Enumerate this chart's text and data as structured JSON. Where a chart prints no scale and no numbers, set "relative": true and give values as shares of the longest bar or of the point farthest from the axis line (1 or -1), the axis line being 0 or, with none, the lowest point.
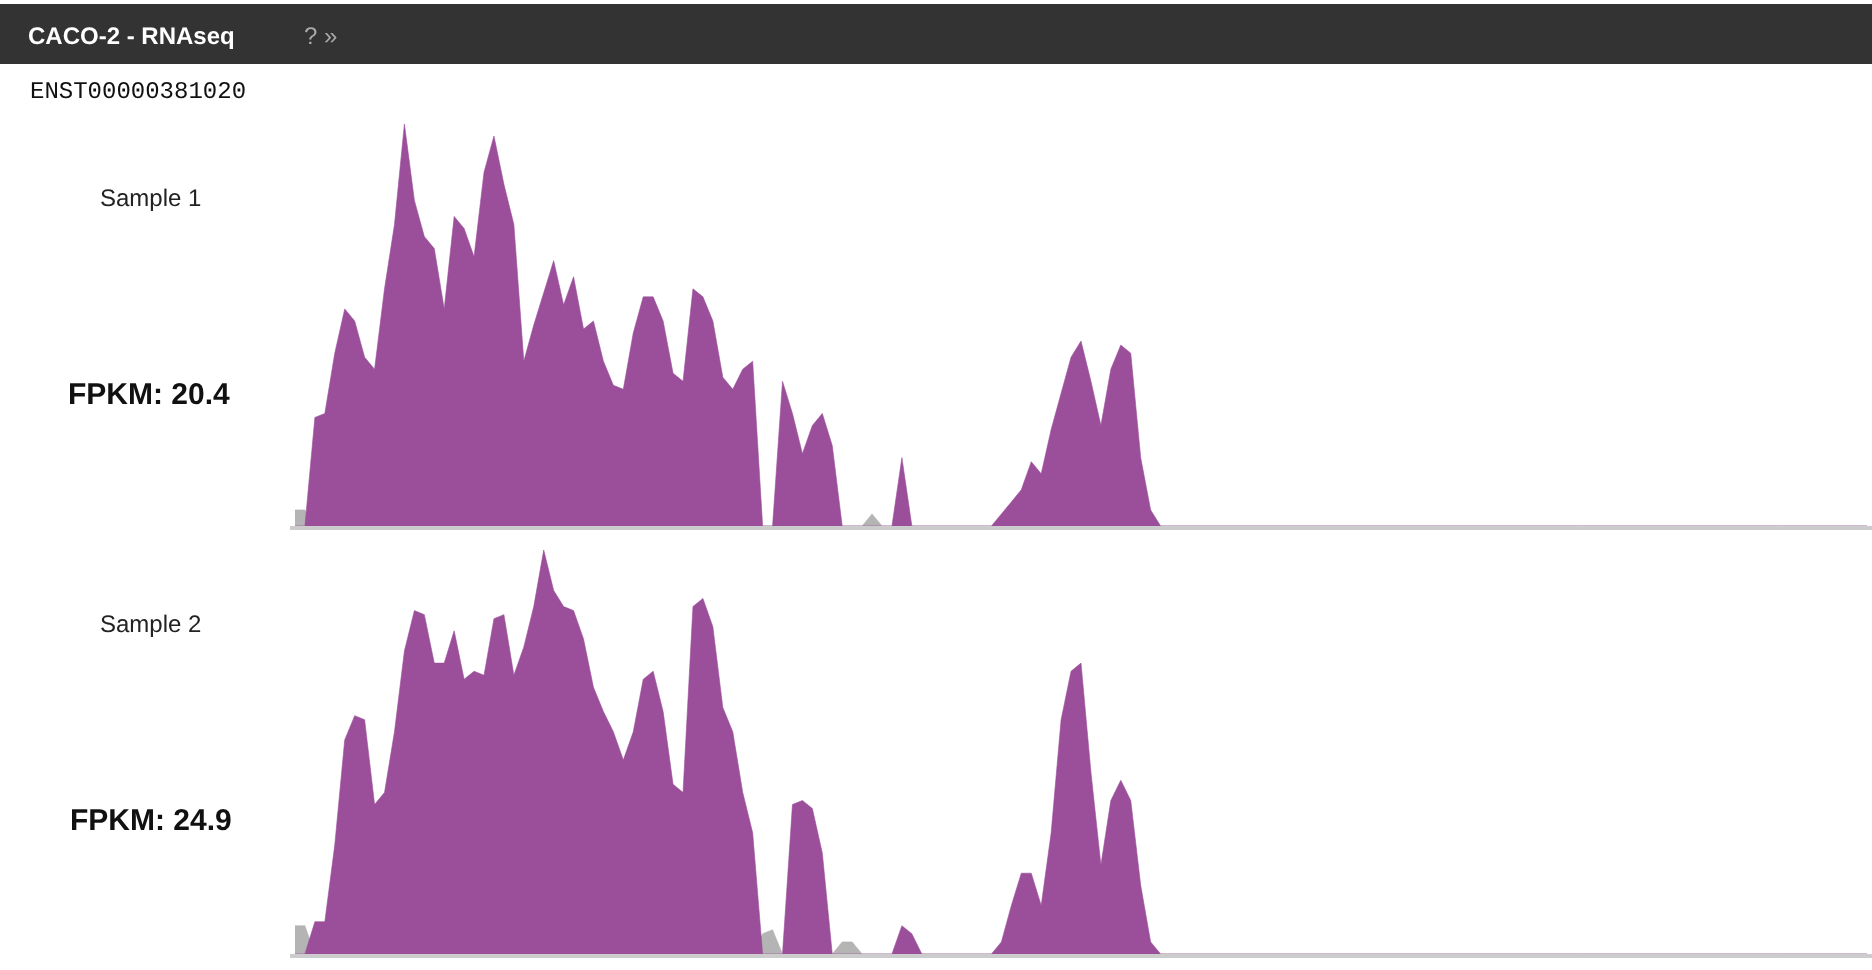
{
  "chart_data": [
    {
      "type": "area",
      "relative": true,
      "title": "CACO-2 - RNAseq",
      "subtitle": "ENST00000381020",
      "annotations": [
        "Sample 1",
        "FPKM: 20.4",
        "? »"
      ],
      "categories": [
        null,
        null,
        null,
        null,
        null,
        null,
        null,
        null,
        null,
        null,
        null,
        null,
        null,
        null,
        null,
        null,
        null,
        null,
        null,
        null,
        null,
        null,
        null,
        null,
        null,
        null,
        null,
        null,
        null,
        null,
        null,
        null,
        null,
        null,
        null,
        null,
        null,
        null,
        null,
        null,
        null,
        null,
        null,
        null,
        null,
        null,
        null,
        null,
        null,
        null,
        null,
        null,
        null,
        null,
        null,
        null,
        null,
        null,
        null,
        null,
        null,
        null,
        null,
        null,
        null,
        null,
        null,
        null,
        null,
        null,
        null,
        null,
        null,
        null,
        null,
        null,
        null,
        null,
        null,
        null,
        null,
        null,
        null,
        null,
        null,
        null,
        null,
        null,
        null,
        null,
        null,
        null,
        null,
        null,
        null,
        null,
        null,
        null,
        null,
        null,
        null,
        null,
        null,
        null,
        null,
        null,
        null,
        null,
        null,
        null,
        null,
        null,
        null,
        null,
        null,
        null,
        null,
        null,
        null,
        null,
        null,
        null,
        null,
        null,
        null,
        null,
        null,
        null,
        null,
        null,
        null,
        null,
        null,
        null,
        null,
        null,
        null,
        null,
        null,
        null,
        null,
        null,
        null,
        null,
        null,
        null,
        null,
        null,
        null,
        null,
        null,
        null,
        null,
        null,
        null,
        null,
        null,
        null,
        null
      ],
      "series": [
        {
          "color": "#b4b4b4",
          "values": [
            0.04,
            0.04,
            0,
            0,
            0,
            0,
            0,
            0,
            0,
            0,
            0,
            0,
            0,
            0,
            0,
            0,
            0,
            0,
            0,
            0,
            0,
            0,
            0,
            0,
            0,
            0,
            0,
            0,
            0,
            0,
            0,
            0,
            0,
            0,
            0,
            0,
            0,
            0,
            0,
            0,
            0,
            0,
            0,
            0,
            0,
            0,
            0,
            0,
            0,
            0,
            0,
            0,
            0,
            0,
            0,
            0,
            0,
            0,
            0.03,
            0,
            0,
            0,
            0,
            0,
            0,
            0,
            0,
            0,
            0,
            0,
            0,
            0,
            0,
            0,
            0,
            0,
            0,
            0,
            0,
            0,
            0,
            0,
            0,
            0,
            0,
            0,
            0,
            0,
            0,
            0,
            0,
            0,
            0,
            0,
            0,
            0,
            0,
            0,
            0,
            0,
            0,
            0,
            0,
            0,
            0,
            0,
            0,
            0,
            0,
            0,
            0,
            0,
            0,
            0,
            0,
            0,
            0,
            0,
            0,
            0,
            0,
            0,
            0,
            0,
            0,
            0,
            0,
            0,
            0,
            0,
            0,
            0,
            0,
            0,
            0,
            0,
            0,
            0,
            0,
            0,
            0,
            0,
            0,
            0,
            0,
            0,
            0,
            0,
            0,
            0,
            0,
            0,
            0,
            0,
            0,
            0,
            0,
            0,
            0
          ]
        },
        {
          "color": "#9b4f9b",
          "values": [
            0,
            0,
            0.27,
            0.28,
            0.43,
            0.54,
            0.51,
            0.42,
            0.39,
            0.59,
            0.75,
            1.0,
            0.81,
            0.72,
            0.69,
            0.54,
            0.77,
            0.74,
            0.67,
            0.88,
            0.97,
            0.85,
            0.75,
            0.41,
            0.5,
            0.58,
            0.66,
            0.55,
            0.62,
            0.49,
            0.51,
            0.41,
            0.35,
            0.34,
            0.48,
            0.57,
            0.57,
            0.51,
            0.38,
            0.36,
            0.59,
            0.57,
            0.51,
            0.37,
            0.34,
            0.39,
            0.41,
            0,
            0,
            0.36,
            0.28,
            0.18,
            0.25,
            0.28,
            0.2,
            0,
            0,
            0,
            0,
            0,
            0,
            0.17,
            0,
            0,
            0,
            0,
            0,
            0,
            0,
            0,
            0,
            0.03,
            0.06,
            0.09,
            0.16,
            0.13,
            0.24,
            0.33,
            0.42,
            0.46,
            0.36,
            0.25,
            0.39,
            0.45,
            0.43,
            0.17,
            0.04,
            0,
            0,
            0,
            0,
            0,
            0,
            0,
            0,
            0,
            0,
            0,
            0,
            0,
            0,
            0,
            0,
            0,
            0,
            0,
            0,
            0,
            0,
            0,
            0,
            0,
            0,
            0,
            0,
            0,
            0,
            0,
            0,
            0,
            0,
            0,
            0,
            0,
            0,
            0,
            0,
            0,
            0,
            0,
            0,
            0,
            0,
            0,
            0,
            0,
            0,
            0,
            0,
            0,
            0,
            0,
            0,
            0,
            0,
            0,
            0,
            0,
            0,
            0,
            0,
            0,
            0,
            0,
            0,
            0,
            0,
            0,
            0
          ]
        }
      ]
    },
    {
      "type": "area",
      "relative": true,
      "annotations": [
        "Sample 2",
        "FPKM: 24.9"
      ],
      "categories": [
        null,
        null,
        null,
        null,
        null,
        null,
        null,
        null,
        null,
        null,
        null,
        null,
        null,
        null,
        null,
        null,
        null,
        null,
        null,
        null,
        null,
        null,
        null,
        null,
        null,
        null,
        null,
        null,
        null,
        null,
        null,
        null,
        null,
        null,
        null,
        null,
        null,
        null,
        null,
        null,
        null,
        null,
        null,
        null,
        null,
        null,
        null,
        null,
        null,
        null,
        null,
        null,
        null,
        null,
        null,
        null,
        null,
        null,
        null,
        null,
        null,
        null,
        null,
        null,
        null,
        null,
        null,
        null,
        null,
        null,
        null,
        null,
        null,
        null,
        null,
        null,
        null,
        null,
        null,
        null,
        null,
        null,
        null,
        null,
        null,
        null,
        null,
        null,
        null,
        null,
        null,
        null,
        null,
        null,
        null,
        null,
        null,
        null,
        null,
        null,
        null,
        null,
        null,
        null,
        null,
        null,
        null,
        null,
        null,
        null,
        null,
        null,
        null,
        null,
        null,
        null,
        null,
        null,
        null,
        null,
        null,
        null,
        null,
        null,
        null,
        null,
        null,
        null,
        null,
        null,
        null,
        null,
        null,
        null,
        null,
        null,
        null,
        null,
        null,
        null,
        null,
        null,
        null,
        null,
        null,
        null,
        null,
        null,
        null,
        null,
        null,
        null,
        null,
        null,
        null,
        null,
        null,
        null,
        null
      ],
      "series": [
        {
          "color": "#b4b4b4",
          "values": [
            0.07,
            0.07,
            0,
            0,
            0,
            0,
            0,
            0,
            0,
            0,
            0,
            0,
            0,
            0,
            0,
            0,
            0,
            0,
            0,
            0,
            0,
            0,
            0,
            0,
            0,
            0,
            0,
            0,
            0,
            0,
            0,
            0,
            0,
            0,
            0,
            0,
            0,
            0,
            0,
            0,
            0,
            0,
            0,
            0,
            0,
            0,
            0,
            0.05,
            0.06,
            0,
            0,
            0,
            0,
            0,
            0,
            0.03,
            0.03,
            0,
            0,
            0,
            0,
            0,
            0,
            0,
            0,
            0,
            0,
            0,
            0,
            0,
            0,
            0,
            0,
            0,
            0,
            0,
            0,
            0,
            0,
            0,
            0,
            0,
            0,
            0,
            0,
            0,
            0,
            0,
            0,
            0,
            0,
            0,
            0,
            0,
            0,
            0,
            0,
            0,
            0,
            0,
            0,
            0,
            0,
            0,
            0,
            0,
            0,
            0,
            0,
            0,
            0,
            0,
            0,
            0,
            0,
            0,
            0,
            0,
            0,
            0,
            0,
            0,
            0,
            0,
            0,
            0,
            0,
            0,
            0,
            0,
            0,
            0,
            0,
            0,
            0,
            0,
            0,
            0,
            0,
            0,
            0,
            0,
            0,
            0,
            0,
            0,
            0,
            0,
            0,
            0,
            0,
            0,
            0,
            0,
            0,
            0,
            0,
            0,
            0
          ]
        },
        {
          "color": "#9b4f9b",
          "values": [
            0,
            0,
            0.08,
            0.08,
            0.27,
            0.53,
            0.59,
            0.58,
            0.37,
            0.4,
            0.55,
            0.75,
            0.85,
            0.84,
            0.72,
            0.72,
            0.8,
            0.68,
            0.7,
            0.69,
            0.83,
            0.84,
            0.69,
            0.76,
            0.86,
            1.0,
            0.9,
            0.86,
            0.85,
            0.78,
            0.66,
            0.6,
            0.55,
            0.48,
            0.55,
            0.68,
            0.7,
            0.6,
            0.42,
            0.4,
            0.86,
            0.88,
            0.81,
            0.61,
            0.55,
            0.4,
            0.3,
            0,
            0,
            0,
            0.37,
            0.38,
            0.36,
            0.25,
            0,
            0,
            0,
            0,
            0,
            0,
            0,
            0.07,
            0.05,
            0,
            0,
            0,
            0,
            0,
            0,
            0,
            0,
            0.03,
            0.12,
            0.2,
            0.2,
            0.12,
            0.3,
            0.58,
            0.7,
            0.72,
            0.45,
            0.22,
            0.38,
            0.43,
            0.38,
            0.17,
            0.03,
            0,
            0,
            0,
            0,
            0,
            0,
            0,
            0,
            0,
            0,
            0,
            0,
            0,
            0,
            0,
            0,
            0,
            0,
            0,
            0,
            0,
            0,
            0,
            0,
            0,
            0,
            0,
            0,
            0,
            0,
            0,
            0,
            0,
            0,
            0,
            0,
            0,
            0,
            0,
            0,
            0,
            0,
            0,
            0,
            0,
            0,
            0,
            0,
            0,
            0,
            0,
            0,
            0,
            0,
            0,
            0,
            0,
            0,
            0,
            0,
            0,
            0,
            0,
            0,
            0,
            0,
            0,
            0,
            0,
            0,
            0,
            0
          ]
        }
      ]
    }
  ]
}
